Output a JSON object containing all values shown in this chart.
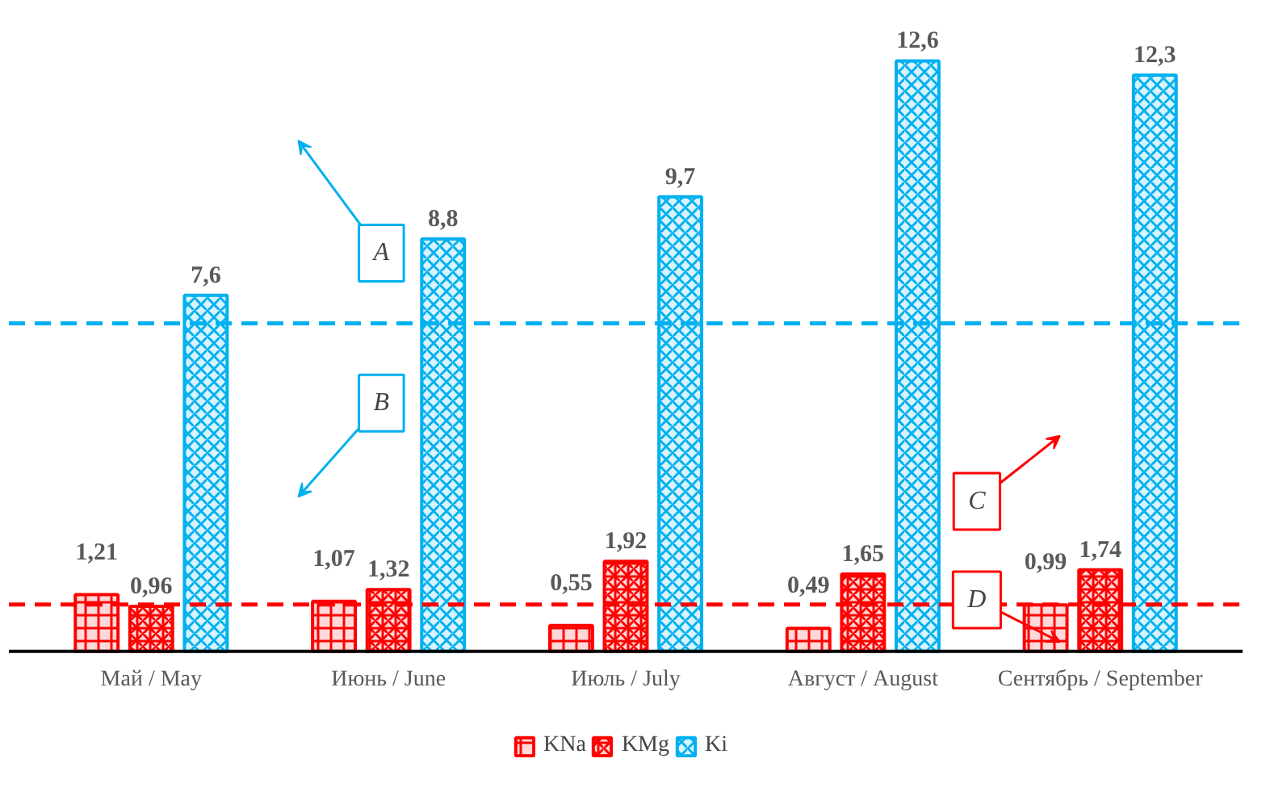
{
  "chart_data": {
    "type": "bar",
    "categories": [
      "Май / May",
      "Июнь / June",
      "Июль / July",
      "Август / August",
      "Сентябрь / September"
    ],
    "series": [
      {
        "name": "KNa",
        "color": "#ff0000",
        "values": [
          1.21,
          1.07,
          0.55,
          0.49,
          0.99
        ],
        "value_labels": [
          "1,21",
          "1,07",
          "0,55",
          "0,49",
          "0,99"
        ]
      },
      {
        "name": "KMg",
        "color": "#ff0000",
        "values": [
          0.96,
          1.32,
          1.92,
          1.65,
          1.74
        ],
        "value_labels": [
          "0,96",
          "1,32",
          "1,92",
          "1,65",
          "1,74"
        ]
      },
      {
        "name": "Ki",
        "color": "#00b0f0",
        "values": [
          7.6,
          8.8,
          9.7,
          12.6,
          12.3
        ],
        "value_labels": [
          "7,6",
          "8,8",
          "9,7",
          "12,6",
          "12,3"
        ]
      }
    ],
    "ref_lines": [
      {
        "axis": "y",
        "value": 1,
        "color": "#ff0000",
        "line_style": "dashed"
      },
      {
        "axis": "y",
        "value": 7,
        "color": "#00b0f0",
        "line_style": "dashed"
      }
    ],
    "annotations": [
      "A",
      "B",
      "C",
      "D"
    ],
    "tick_labels": "x",
    "legend": "bottom"
  }
}
